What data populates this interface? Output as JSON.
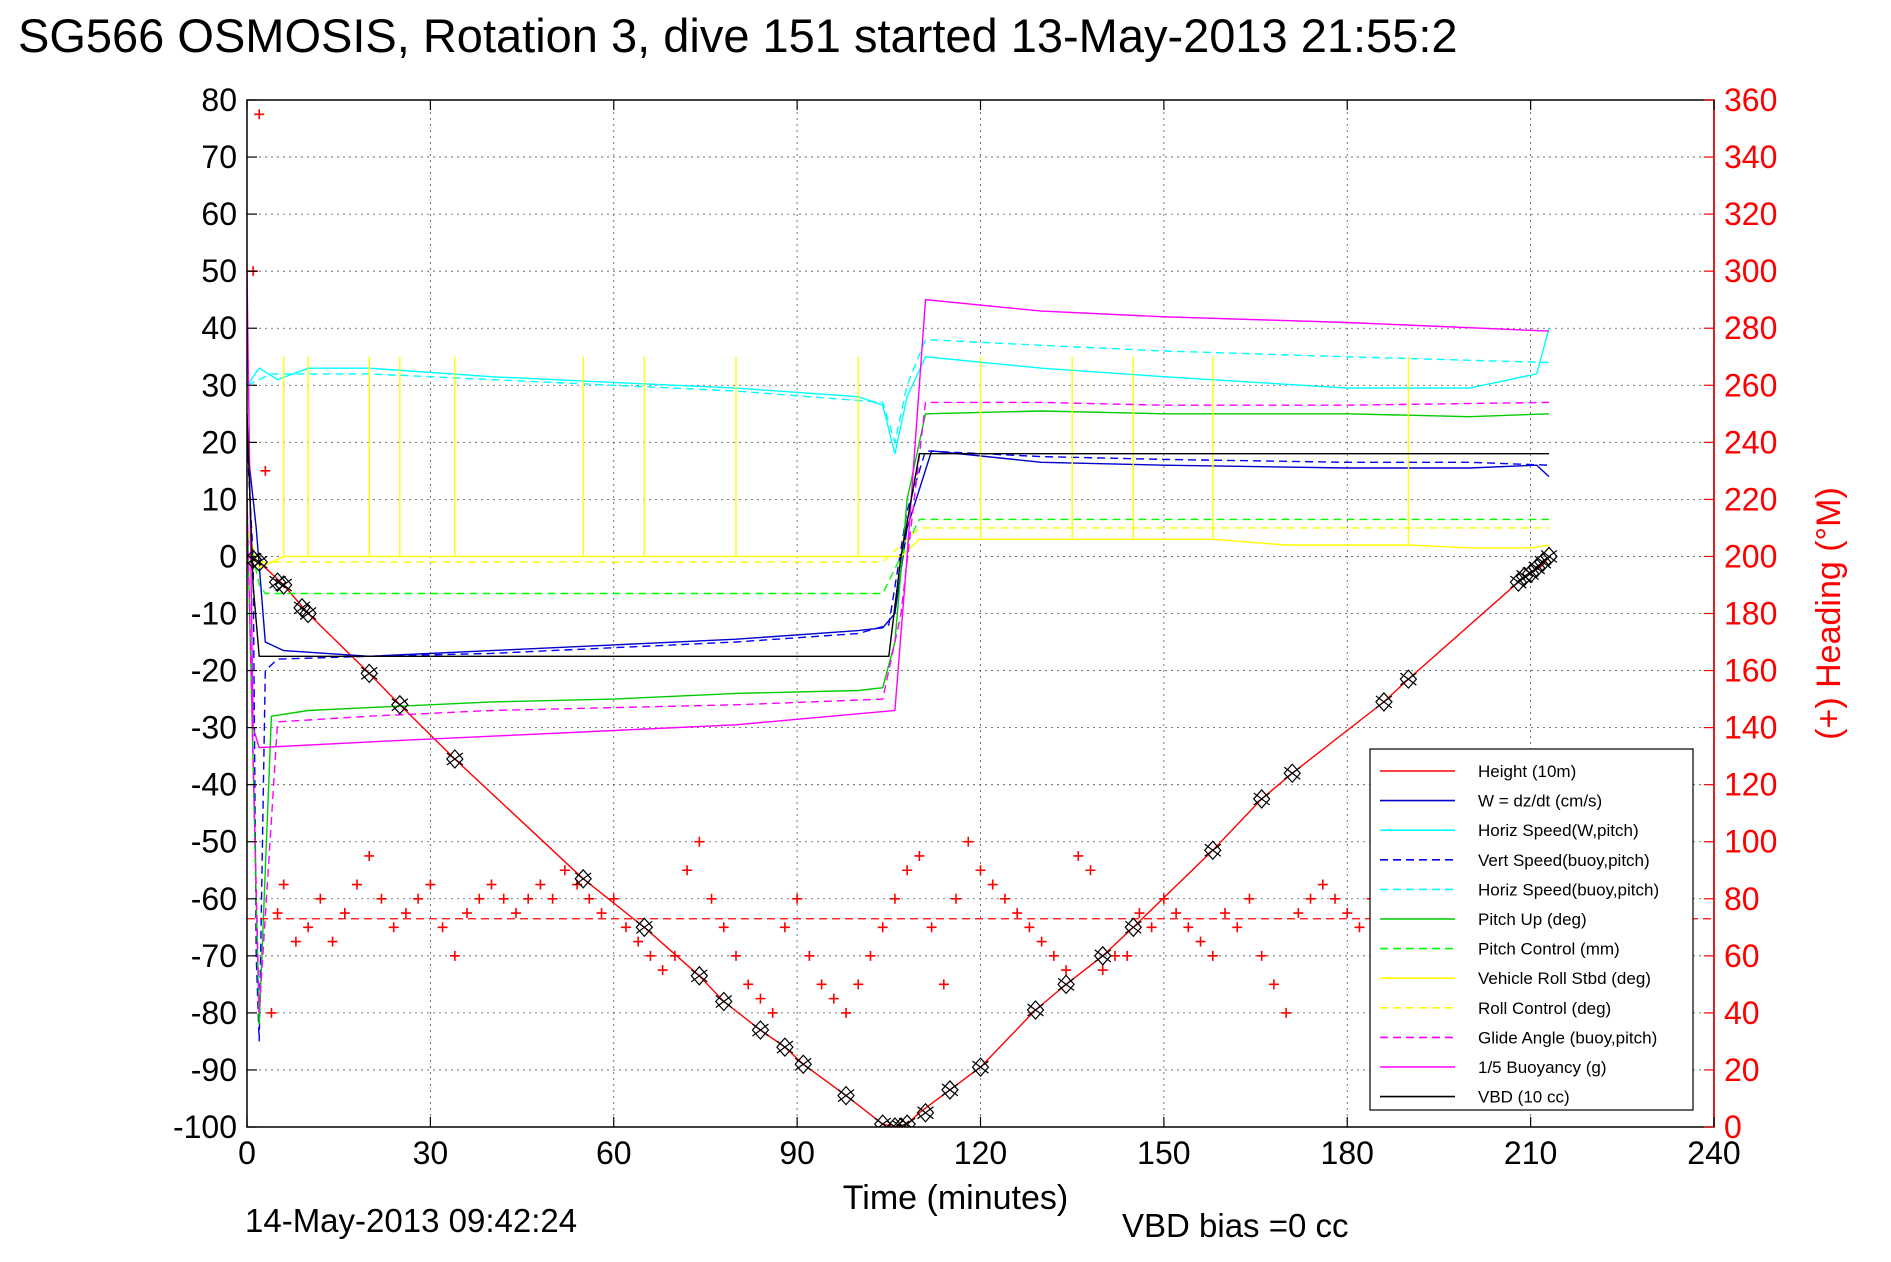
{
  "title": "SG566 OSMOSIS, Rotation 3, dive 151 started 13-May-2013 21:55:2",
  "footer_left": "14-May-2013 09:42:24",
  "footer_right": "VBD bias =0 cc",
  "chart_data": {
    "type": "line",
    "title": "SG566 OSMOSIS, Rotation 3, dive 151 started 13-May-2013 21:55:2",
    "xlabel": "Time (minutes)",
    "ylabel": "",
    "y2label": "(+) Heading (°M)",
    "xlim": [
      0,
      240
    ],
    "ylim": [
      -100,
      80
    ],
    "y2lim": [
      0,
      360
    ],
    "xticks": [
      0,
      30,
      60,
      90,
      120,
      150,
      180,
      210,
      240
    ],
    "yticks": [
      80,
      70,
      60,
      50,
      40,
      30,
      20,
      10,
      0,
      -10,
      -20,
      -30,
      -40,
      -50,
      -60,
      -70,
      -80,
      -90,
      -100
    ],
    "y2ticks": [
      360,
      340,
      320,
      300,
      280,
      260,
      240,
      220,
      200,
      180,
      160,
      140,
      120,
      100,
      80,
      60,
      40,
      20,
      0
    ],
    "grid": true,
    "legend_position": "bottom-right",
    "series": [
      {
        "name": "Height (10m)",
        "color": "#ff0000",
        "style": "solid",
        "x": [
          0,
          2,
          6,
          10,
          20,
          25,
          34,
          55,
          65,
          74,
          78,
          84,
          88,
          91,
          98,
          104,
          106,
          108,
          110,
          115,
          120,
          129,
          134,
          140,
          145,
          158,
          166,
          171,
          186,
          190,
          208,
          210,
          212,
          213
        ],
        "y": [
          0,
          -1,
          -5,
          -10,
          -20.5,
          -26,
          -35.5,
          -56.5,
          -65,
          -73.5,
          -78,
          -83,
          -86,
          -89,
          -94.5,
          -99.5,
          -100,
          -99.5,
          -97.5,
          -93.5,
          -89.5,
          -79.5,
          -75,
          -70,
          -65,
          -51.5,
          -42.5,
          -38,
          -25.5,
          -21.5,
          -4.5,
          -3,
          -1.5,
          0
        ]
      },
      {
        "name": "W = dz/dt (cm/s)",
        "color": "#0000cc",
        "style": "solid",
        "x": [
          0,
          1.5,
          3,
          6,
          20,
          40,
          60,
          80,
          100,
          104,
          106,
          108,
          112,
          130,
          150,
          180,
          200,
          211,
          213
        ],
        "y": [
          20,
          5,
          -15,
          -16.5,
          -17.5,
          -16.5,
          -15.5,
          -14.5,
          -13,
          -12.5,
          -10,
          5,
          18.5,
          16.5,
          16,
          15.5,
          15.5,
          16,
          14
        ]
      },
      {
        "name": "Horiz Speed(W,pitch)",
        "color": "#00ffff",
        "style": "solid",
        "x": [
          0,
          2,
          5,
          10,
          20,
          40,
          60,
          80,
          100,
          104,
          106,
          108,
          111,
          130,
          150,
          180,
          200,
          211,
          213
        ],
        "y": [
          30,
          33,
          31,
          33,
          33,
          31.5,
          30.5,
          29.5,
          28,
          26.5,
          18,
          28,
          35,
          33,
          31.5,
          29.5,
          29.5,
          32,
          40
        ]
      },
      {
        "name": "Vert Speed(buoy,pitch)",
        "color": "#0000ff",
        "style": "dashed",
        "x": [
          0,
          1,
          1.5,
          2,
          3,
          5,
          20,
          40,
          60,
          80,
          100,
          105,
          108,
          111,
          130,
          150,
          180,
          200,
          213
        ],
        "y": [
          20,
          0,
          -70,
          -85,
          -20,
          -18,
          -17.5,
          -17,
          -16,
          -15,
          -13.5,
          -12,
          8,
          18.5,
          17.5,
          17,
          16.5,
          16.5,
          16
        ]
      },
      {
        "name": "Horiz Speed(buoy,pitch)",
        "color": "#00ffff",
        "style": "dashed",
        "x": [
          0,
          4,
          20,
          40,
          60,
          80,
          104,
          106,
          108,
          111,
          130,
          150,
          180,
          213
        ],
        "y": [
          30,
          32,
          32,
          31,
          30,
          29,
          27,
          20,
          30,
          38,
          37,
          36,
          35,
          34
        ]
      },
      {
        "name": "Pitch Up (deg)",
        "color": "#00cc00",
        "style": "solid",
        "x": [
          0,
          1.5,
          2,
          4,
          10,
          20,
          40,
          60,
          80,
          100,
          104,
          106,
          108,
          111,
          130,
          150,
          180,
          200,
          213
        ],
        "y": [
          10,
          -60,
          -82,
          -28,
          -27,
          -26.5,
          -25.5,
          -25,
          -24,
          -23.5,
          -23,
          -15,
          10,
          25,
          25.5,
          25,
          25,
          24.5,
          25
        ]
      },
      {
        "name": "Pitch Control (mm)",
        "color": "#00ff00",
        "style": "dashed",
        "x": [
          0,
          2,
          3,
          20,
          40,
          60,
          80,
          104,
          107,
          110,
          130,
          160,
          190,
          213
        ],
        "y": [
          5,
          -5,
          -6.5,
          -6.5,
          -6.5,
          -6.5,
          -6.5,
          -6.5,
          0,
          6.5,
          6.5,
          6.5,
          6.5,
          6.5
        ]
      },
      {
        "name": "Vehicle Roll Stbd (deg)",
        "color": "#ffff00",
        "style": "solid",
        "x": [
          0,
          2,
          6,
          6,
          6,
          10,
          10,
          10,
          20,
          20,
          20,
          25,
          25,
          25,
          34,
          34,
          34,
          55,
          55,
          55,
          65,
          65,
          65,
          80,
          80,
          80,
          100,
          100,
          100,
          104,
          107,
          110,
          120,
          120,
          120,
          135,
          135,
          135,
          145,
          145,
          145,
          158,
          158,
          158,
          170,
          180,
          190,
          190,
          190,
          200,
          210,
          213
        ],
        "y": [
          5,
          -2,
          0,
          35,
          0,
          0,
          35,
          0,
          0,
          35,
          0,
          0,
          35,
          0,
          0,
          35,
          0,
          0,
          35,
          0,
          0,
          35,
          0,
          0,
          35,
          0,
          0,
          35,
          0,
          0,
          0,
          3,
          3,
          35,
          3,
          3,
          35,
          3,
          3,
          35,
          3,
          3,
          35,
          3,
          2,
          2,
          2,
          35,
          2,
          1.5,
          1.5,
          2
        ]
      },
      {
        "name": "Roll Control (deg)",
        "color": "#ffff00",
        "style": "dashed",
        "x": [
          0,
          20,
          40,
          60,
          80,
          104,
          107,
          110,
          130,
          160,
          190,
          213
        ],
        "y": [
          -1,
          -1,
          -1,
          -1,
          -1,
          -1,
          2,
          5,
          5,
          5,
          5,
          5
        ]
      },
      {
        "name": "Glide Angle (buoy,pitch)",
        "color": "#ff00ff",
        "style": "dashed",
        "x": [
          0,
          2,
          5,
          20,
          40,
          60,
          80,
          104,
          107,
          111,
          130,
          150,
          180,
          213
        ],
        "y": [
          10,
          -80,
          -29,
          -28,
          -27,
          -26.5,
          -26,
          -25,
          -10,
          27,
          27,
          26.5,
          26.5,
          27
        ]
      },
      {
        "name": "1/5 Buoyancy (g)",
        "color": "#ff00ff",
        "style": "solid",
        "x": [
          0,
          1,
          2,
          20,
          40,
          60,
          80,
          106,
          108,
          111,
          130,
          150,
          180,
          213
        ],
        "y": [
          50,
          -30,
          -33.5,
          -32.5,
          -31.5,
          -30.5,
          -29.5,
          -27,
          0,
          45,
          43,
          42,
          41,
          39.5
        ]
      },
      {
        "name": "VBD (10 cc)",
        "color": "#000000",
        "style": "solid",
        "x": [
          0,
          1,
          2,
          105,
          107,
          110,
          213
        ],
        "y": [
          25,
          -5,
          -17.5,
          -17.5,
          0,
          18,
          18
        ]
      }
    ],
    "heading_series": {
      "name": "(+) Heading (°M)",
      "color": "#ff0000",
      "axis": "right",
      "mean_line": {
        "value": 73,
        "style": "dashed"
      },
      "x": [
        1,
        2,
        3,
        4,
        5,
        6,
        8,
        10,
        12,
        14,
        16,
        18,
        20,
        22,
        24,
        26,
        28,
        30,
        32,
        34,
        36,
        38,
        40,
        42,
        44,
        46,
        48,
        50,
        52,
        54,
        56,
        58,
        60,
        62,
        64,
        66,
        68,
        70,
        72,
        74,
        76,
        78,
        80,
        82,
        84,
        86,
        88,
        90,
        92,
        94,
        96,
        98,
        100,
        102,
        104,
        106,
        108,
        110,
        112,
        114,
        116,
        118,
        120,
        122,
        124,
        126,
        128,
        130,
        132,
        134,
        136,
        138,
        140,
        142,
        144,
        146,
        148,
        150,
        152,
        154,
        156,
        158,
        160,
        162,
        164,
        166,
        168,
        170,
        172,
        174,
        176,
        178,
        180,
        182,
        184,
        186,
        188,
        190,
        192,
        194,
        196,
        198,
        200
      ],
      "y": [
        300,
        355,
        230,
        40,
        75,
        85,
        65,
        70,
        80,
        65,
        75,
        85,
        95,
        80,
        70,
        75,
        80,
        85,
        70,
        60,
        75,
        80,
        85,
        80,
        75,
        80,
        85,
        80,
        90,
        85,
        80,
        75,
        80,
        70,
        65,
        60,
        55,
        60,
        90,
        100,
        80,
        70,
        60,
        50,
        45,
        40,
        70,
        80,
        60,
        50,
        45,
        40,
        50,
        60,
        70,
        80,
        90,
        95,
        70,
        50,
        80,
        100,
        90,
        85,
        80,
        75,
        70,
        65,
        60,
        55,
        95,
        90,
        55,
        60,
        60,
        75,
        70,
        80,
        75,
        70,
        65,
        60,
        75,
        70,
        80,
        60,
        50,
        40,
        75,
        80,
        85,
        80,
        75,
        70,
        80,
        90,
        85,
        80,
        85,
        90,
        95,
        100,
        95
      ]
    },
    "markers": {
      "symbol": "open-diamond",
      "color": "#000000",
      "x": [
        1,
        2,
        5,
        6,
        9,
        10,
        20,
        25,
        34,
        55,
        65,
        74,
        78,
        84,
        88,
        91,
        98,
        104,
        106,
        107,
        108,
        111,
        115,
        120,
        129,
        134,
        140,
        145,
        158,
        166,
        171,
        186,
        190,
        208,
        209,
        210,
        211,
        212,
        213
      ],
      "y": [
        -0.5,
        -1,
        -4.5,
        -5,
        -9,
        -10,
        -20.5,
        -26,
        -35.5,
        -56.5,
        -65,
        -73.5,
        -78,
        -83,
        -86,
        -89,
        -94.5,
        -99.5,
        -100,
        -100,
        -99.5,
        -97.5,
        -93.5,
        -89.5,
        -79.5,
        -75,
        -70,
        -65,
        -51.5,
        -42.5,
        -38,
        -25.5,
        -21.5,
        -4.5,
        -3.5,
        -3,
        -2,
        -1,
        0
      ]
    }
  }
}
